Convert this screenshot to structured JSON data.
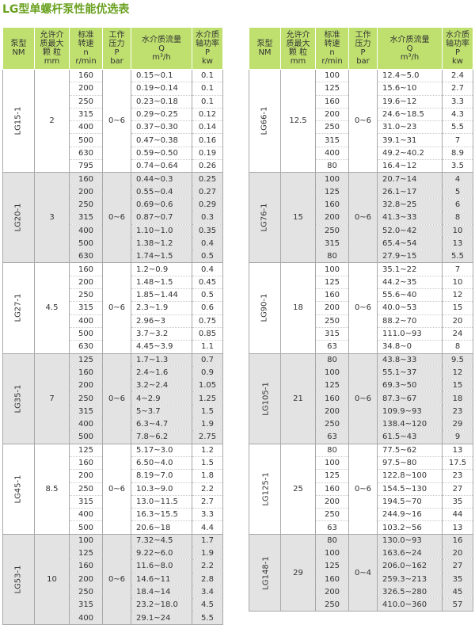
{
  "title": "LG型单螺杆泵性能优选表",
  "headers": {
    "model": [
      "泵型",
      "NM"
    ],
    "particle": [
      "允许介",
      "质最大",
      "颗  粒",
      "mm"
    ],
    "speed": [
      "标准",
      "转速",
      "n",
      "r/min"
    ],
    "pressure": [
      "工作",
      "压力",
      "P",
      "bar"
    ],
    "flow": [
      "水介质流量",
      "Q",
      "m³/h"
    ],
    "power": [
      "水介质",
      "轴功率",
      "P",
      "kw"
    ]
  },
  "left_groups": [
    {
      "model": "LG15-1",
      "particle": "2",
      "pressure": "0~6",
      "rows": [
        {
          "n": "160",
          "q": "0.15~0.1",
          "p": "0.1"
        },
        {
          "n": "200",
          "q": "0.19~0.14",
          "p": "0.1"
        },
        {
          "n": "250",
          "q": "0.23~0.18",
          "p": "0.1"
        },
        {
          "n": "315",
          "q": "0.29~0.25",
          "p": "0.12"
        },
        {
          "n": "400",
          "q": "0.37~0.30",
          "p": "0.14"
        },
        {
          "n": "500",
          "q": "0.47~0.38",
          "p": "0.16"
        },
        {
          "n": "630",
          "q": "0.59~0.50",
          "p": "0.19"
        },
        {
          "n": "795",
          "q": "0.74~0.64",
          "p": "0.26"
        }
      ]
    },
    {
      "model": "LG20-1",
      "particle": "3",
      "pressure": "0~6",
      "rows": [
        {
          "n": "160",
          "q": "0.44~0.3",
          "p": "0.25"
        },
        {
          "n": "200",
          "q": "0.55~0.4",
          "p": "0.27"
        },
        {
          "n": "250",
          "q": "0.69~0.6",
          "p": "0.29"
        },
        {
          "n": "315",
          "q": "0.87~0.7",
          "p": "0.3"
        },
        {
          "n": "400",
          "q": "1.10~1.0",
          "p": "0.35"
        },
        {
          "n": "500",
          "q": "1.38~1.2",
          "p": "0.4"
        },
        {
          "n": "630",
          "q": "1.74~1.5",
          "p": "0.5"
        }
      ]
    },
    {
      "model": "LG27-1",
      "particle": "4.5",
      "pressure": "0~6",
      "rows": [
        {
          "n": "160",
          "q": "1.2~0.9",
          "p": "0.4"
        },
        {
          "n": "200",
          "q": "1.48~1.5",
          "p": "0.45"
        },
        {
          "n": "250",
          "q": "1.85~1.44",
          "p": "0.5"
        },
        {
          "n": "315",
          "q": "2.3~1.9",
          "p": "0.6"
        },
        {
          "n": "400",
          "q": "2.96~3",
          "p": "0.75"
        },
        {
          "n": "500",
          "q": "3.7~3.2",
          "p": "0.85"
        },
        {
          "n": "630",
          "q": "4.45~3.9",
          "p": "1.1"
        }
      ]
    },
    {
      "model": "LG35-1",
      "particle": "7",
      "pressure": "0~6",
      "rows": [
        {
          "n": "125",
          "q": "1.7~1.3",
          "p": "0.7"
        },
        {
          "n": "160",
          "q": "2.4~1.6",
          "p": "0.9"
        },
        {
          "n": "200",
          "q": "3.2~2.4",
          "p": "1.05"
        },
        {
          "n": "250",
          "q": "4~2.9",
          "p": "1.25"
        },
        {
          "n": "315",
          "q": "5~3.7",
          "p": "1.5"
        },
        {
          "n": "400",
          "q": "6.3~4.7",
          "p": "1.9"
        },
        {
          "n": "500",
          "q": "7.8~6.2",
          "p": "2.75"
        }
      ]
    },
    {
      "model": "LG45-1",
      "particle": "8.5",
      "pressure": "0~6",
      "rows": [
        {
          "n": "125",
          "q": "5.17~3.0",
          "p": "1.2"
        },
        {
          "n": "160",
          "q": "6.50~4.0",
          "p": "1.5"
        },
        {
          "n": "200",
          "q": "8.19~7.0",
          "p": "1.8"
        },
        {
          "n": "250",
          "q": "10.3~9.0",
          "p": "2.2"
        },
        {
          "n": "315",
          "q": "13.0~11.5",
          "p": "2.7"
        },
        {
          "n": "400",
          "q": "16.3~15.5",
          "p": "3.3"
        },
        {
          "n": "500",
          "q": "20.6~18",
          "p": "4.4"
        }
      ]
    },
    {
      "model": "LG53-1",
      "particle": "10",
      "pressure": "0~6",
      "rows": [
        {
          "n": "100",
          "q": "7.32~4.5",
          "p": "1.7"
        },
        {
          "n": "125",
          "q": "9.22~6.0",
          "p": "1.9"
        },
        {
          "n": "160",
          "q": "11.6~8.0",
          "p": "2.2"
        },
        {
          "n": "200",
          "q": "14.6~11",
          "p": "2.8"
        },
        {
          "n": "250",
          "q": "18.4~14",
          "p": "3.4"
        },
        {
          "n": "315",
          "q": "23.2~18.0",
          "p": "4.5"
        },
        {
          "n": "400",
          "q": "29.1~24",
          "p": "5.5"
        }
      ]
    }
  ],
  "right_groups": [
    {
      "model": "LG66-1",
      "particle": "12.5",
      "pressure": "0~6",
      "rows": [
        {
          "n": "100",
          "q": "12.4~5.0",
          "p": "2.4"
        },
        {
          "n": "125",
          "q": "15.6~10",
          "p": "2.7"
        },
        {
          "n": "160",
          "q": "19.6~12",
          "p": "3.3"
        },
        {
          "n": "200",
          "q": "24.6~18.5",
          "p": "4.3"
        },
        {
          "n": "250",
          "q": "31.0~23",
          "p": "5.5"
        },
        {
          "n": "315",
          "q": "39.1~31",
          "p": "7"
        },
        {
          "n": "400",
          "q": "49.2~40.2",
          "p": "8.9"
        },
        {
          "n": "80",
          "q": "16.4~12",
          "p": "3.5"
        }
      ]
    },
    {
      "model": "LG76-1",
      "particle": "15",
      "pressure": "0~6",
      "rows": [
        {
          "n": "100",
          "q": "20.7~14",
          "p": "4"
        },
        {
          "n": "125",
          "q": "26.1~17",
          "p": "5"
        },
        {
          "n": "160",
          "q": "32.8~25",
          "p": "6"
        },
        {
          "n": "200",
          "q": "41.3~33",
          "p": "8"
        },
        {
          "n": "250",
          "q": "52.0~42",
          "p": "10"
        },
        {
          "n": "315",
          "q": "65.4~54",
          "p": "13"
        },
        {
          "n": "80",
          "q": "27.9~15",
          "p": "5.5"
        }
      ]
    },
    {
      "model": "LG90-1",
      "particle": "18",
      "pressure": "0~6",
      "rows": [
        {
          "n": "100",
          "q": "35.1~22",
          "p": "7"
        },
        {
          "n": "125",
          "q": "44.2~35",
          "p": "10"
        },
        {
          "n": "160",
          "q": "55.6~40",
          "p": "12"
        },
        {
          "n": "200",
          "q": "40.0~53",
          "p": "15"
        },
        {
          "n": "250",
          "q": "88.2~70",
          "p": "20"
        },
        {
          "n": "315",
          "q": "111.0~93",
          "p": "24"
        },
        {
          "n": "63",
          "q": "34.8~0",
          "p": "8"
        }
      ]
    },
    {
      "model": "LG105-1",
      "particle": "21",
      "pressure": "0~6",
      "rows": [
        {
          "n": "80",
          "q": "43.8~33",
          "p": "9.5"
        },
        {
          "n": "100",
          "q": "55.1~37",
          "p": "12"
        },
        {
          "n": "125",
          "q": "69.3~50",
          "p": "15"
        },
        {
          "n": "160",
          "q": "87.3~67",
          "p": "18"
        },
        {
          "n": "200",
          "q": "109.9~93",
          "p": "23"
        },
        {
          "n": "250",
          "q": "138.4~120",
          "p": "29"
        },
        {
          "n": "63",
          "q": "61.5~43",
          "p": "9"
        }
      ]
    },
    {
      "model": "LG125-1",
      "particle": "25",
      "pressure": "0~6",
      "rows": [
        {
          "n": "80",
          "q": "77.5~62",
          "p": "13"
        },
        {
          "n": "100",
          "q": "97.5~80",
          "p": "17.5"
        },
        {
          "n": "125",
          "q": "122.8~100",
          "p": "23"
        },
        {
          "n": "160",
          "q": "154.5~130",
          "p": "27"
        },
        {
          "n": "200",
          "q": "194.5~70",
          "p": "35"
        },
        {
          "n": "250",
          "q": "244.9~16",
          "p": "44"
        },
        {
          "n": "63",
          "q": "103.2~56",
          "p": "13"
        }
      ]
    },
    {
      "model": "LG148-1",
      "particle": "29",
      "pressure": "0~4",
      "rows": [
        {
          "n": "80",
          "q": "130.0~93",
          "p": "16"
        },
        {
          "n": "100",
          "q": "163.6~24",
          "p": "20"
        },
        {
          "n": "125",
          "q": "206.0~162",
          "p": "27"
        },
        {
          "n": "160",
          "q": "259.3~213",
          "p": "35"
        },
        {
          "n": "200",
          "q": "326.5~280",
          "p": "45"
        },
        {
          "n": "250",
          "q": "410.0~360",
          "p": "57"
        }
      ]
    }
  ]
}
